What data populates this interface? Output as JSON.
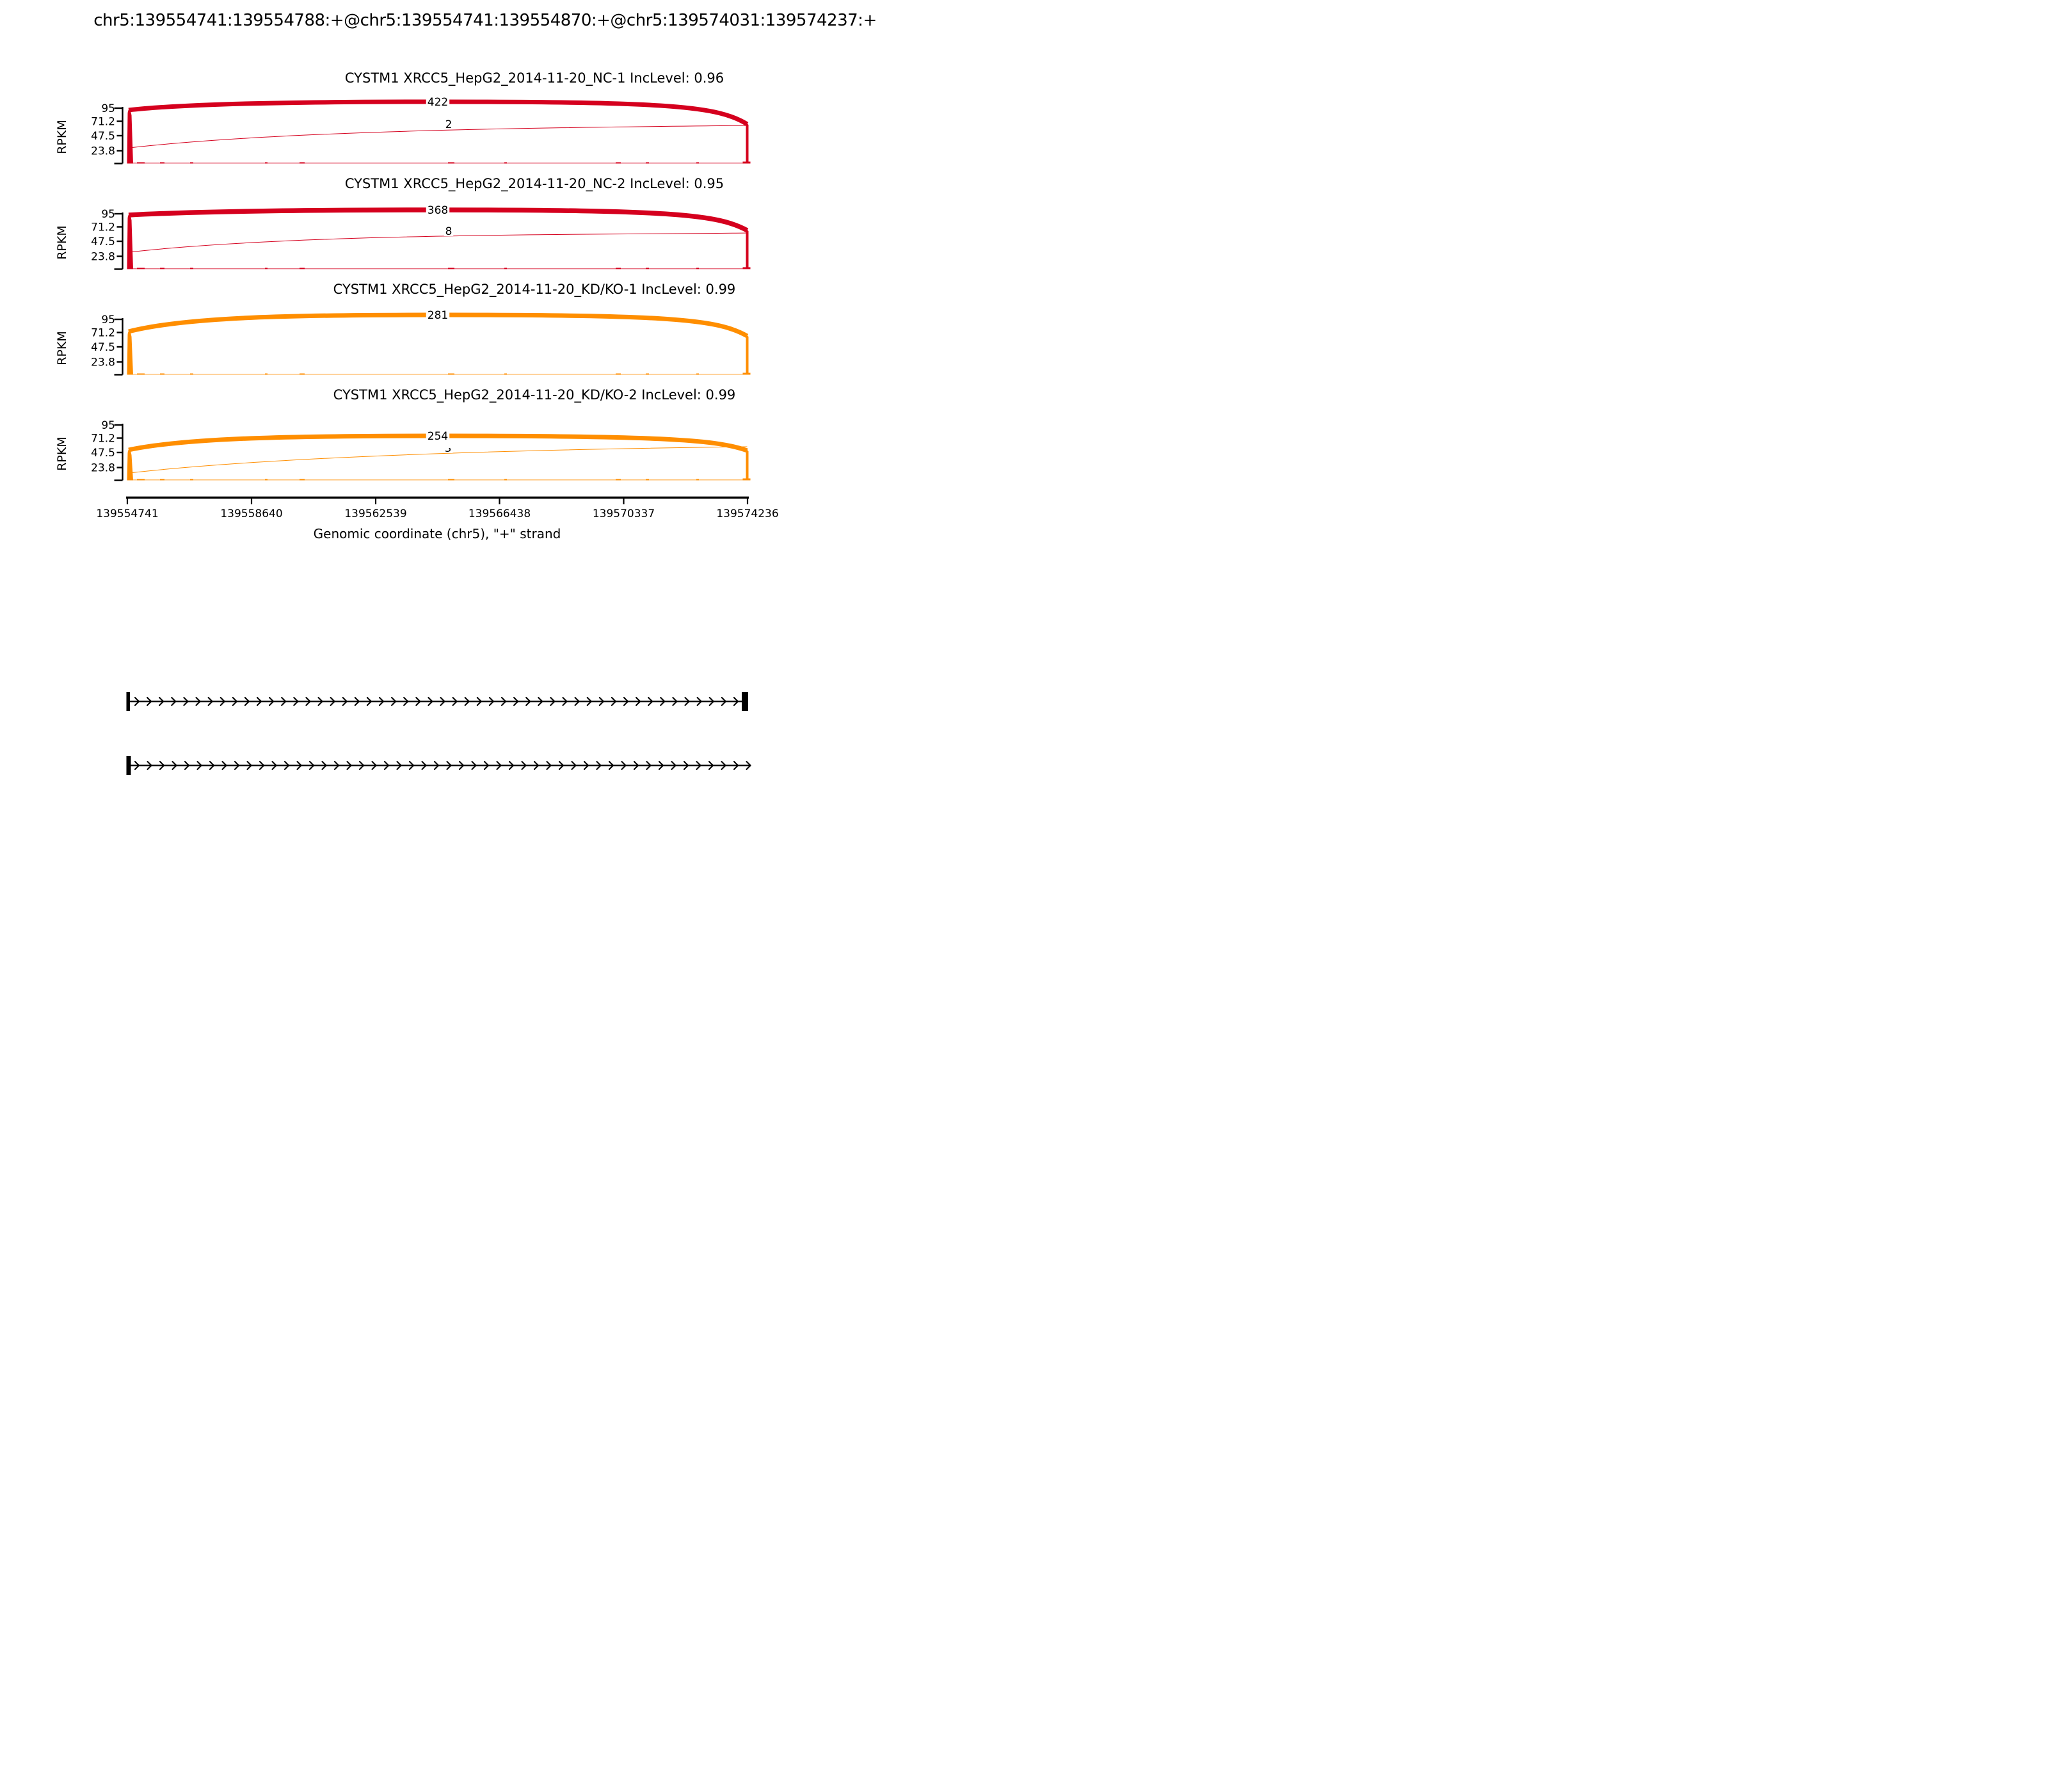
{
  "title": "chr5:139554741:139554788:+@chr5:139554741:139554870:+@chr5:139574031:139574237:+",
  "yaxis": {
    "label": "RPKM",
    "ticks": [
      "95",
      "71.2",
      "47.5",
      "23.8"
    ]
  },
  "xaxis": {
    "label": "Genomic coordinate (chr5), \"+\" strand",
    "ticks": [
      "139554741",
      "139558640",
      "139562539",
      "139566438",
      "139570337",
      "139574236"
    ]
  },
  "tracks": [
    {
      "title": "CYSTM1 XRCC5_HepG2_2014-11-20_NC-1 IncLevel: 0.96",
      "color": "#D5001E",
      "junctions": [
        {
          "count": "422"
        },
        {
          "count": "2"
        }
      ]
    },
    {
      "title": "CYSTM1 XRCC5_HepG2_2014-11-20_NC-2 IncLevel: 0.95",
      "color": "#D5001E",
      "junctions": [
        {
          "count": "368"
        },
        {
          "count": "8"
        }
      ]
    },
    {
      "title": "CYSTM1 XRCC5_HepG2_2014-11-20_KD/KO-1 IncLevel: 0.99",
      "color": "#FF8E00",
      "junctions": [
        {
          "count": "281"
        }
      ]
    },
    {
      "title": "CYSTM1 XRCC5_HepG2_2014-11-20_KD/KO-2 IncLevel: 0.99",
      "color": "#FF8E00",
      "junctions": [
        {
          "count": "254"
        },
        {
          "count": "3"
        }
      ]
    }
  ],
  "chart_data": {
    "type": "area",
    "subtype": "sashimi-plot",
    "title": "chr5:139554741:139554788:+@chr5:139554741:139554870:+@chr5:139574031:139574237:+",
    "xlabel": "Genomic coordinate (chr5), \"+\" strand",
    "ylabel": "RPKM",
    "xlim": [
      139554741,
      139574236
    ],
    "x_ticks": [
      139554741,
      139558640,
      139562539,
      139566438,
      139570337,
      139574236
    ],
    "y_ticks": [
      95,
      71.2,
      47.5,
      23.8
    ],
    "grid": false,
    "series": [
      {
        "name": "XRCC5_HepG2_2014-11-20_NC-1",
        "gene": "CYSTM1",
        "inc_level": 0.96,
        "inclusion_junction_reads": 422,
        "skipping_junction_reads": 2,
        "coverage_peak_rpkm": 95,
        "color": "#D5001E"
      },
      {
        "name": "XRCC5_HepG2_2014-11-20_NC-2",
        "gene": "CYSTM1",
        "inc_level": 0.95,
        "inclusion_junction_reads": 368,
        "skipping_junction_reads": 8,
        "coverage_peak_rpkm": 95,
        "color": "#D5001E"
      },
      {
        "name": "XRCC5_HepG2_2014-11-20_KD/KO-1",
        "gene": "CYSTM1",
        "inc_level": 0.99,
        "inclusion_junction_reads": 281,
        "skipping_junction_reads": null,
        "coverage_peak_rpkm": 95,
        "color": "#FF8E00"
      },
      {
        "name": "XRCC5_HepG2_2014-11-20_KD/KO-2",
        "gene": "CYSTM1",
        "inc_level": 0.99,
        "inclusion_junction_reads": 254,
        "skipping_junction_reads": 3,
        "coverage_peak_rpkm": 71,
        "color": "#FF8E00"
      }
    ],
    "isoform_structures": [
      {
        "left_exon": true,
        "right_exon": true,
        "strand_arrows": "right"
      },
      {
        "left_exon": true,
        "right_exon": false,
        "strand_arrows": "right"
      }
    ]
  }
}
